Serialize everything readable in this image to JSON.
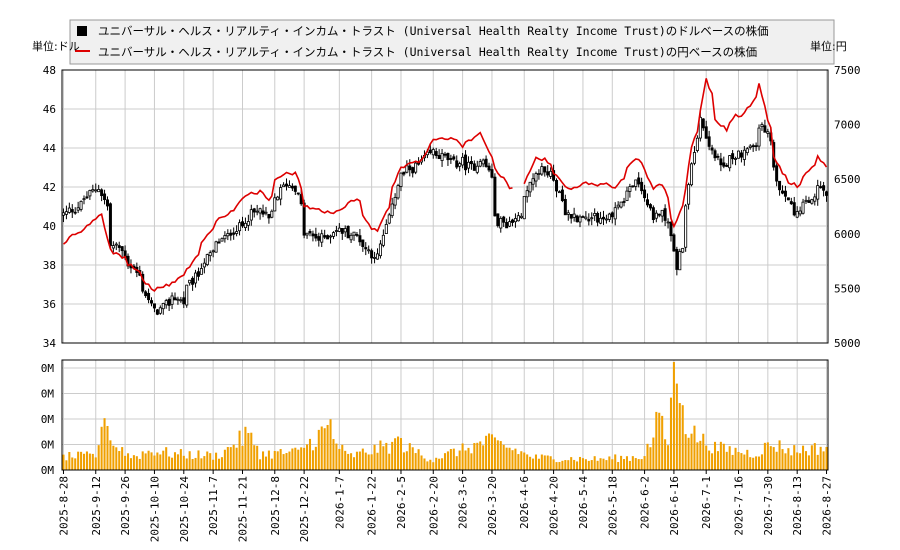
{
  "chart_data": [
    {
      "type": "candlestick",
      "panel": "price",
      "y_unit_left": "単位:ドル",
      "y_unit_right": "単位:円",
      "legend": [
        {
          "label": "ユニバーサル・ヘルス・リアルティ・インカム・トラスト (Universal Health Realty Income Trust)のドルベースの株価",
          "color": "#000000",
          "marker": "square"
        },
        {
          "label": "ユニバーサル・ヘルス・リアルティ・インカム・トラスト (Universal Health Realty Income Trust)の円ベースの株価",
          "color": "#dd0000",
          "marker": "line"
        }
      ],
      "ylim_left": [
        34,
        48
      ],
      "yticks_left": [
        34,
        36,
        38,
        40,
        42,
        44,
        46,
        48
      ],
      "ylim_right": [
        5000,
        7500
      ],
      "yticks_right": [
        5000,
        5500,
        6000,
        6500,
        7000,
        7500
      ],
      "grid": true,
      "usd_close_anchors": [
        [
          "2025-08-28",
          40.6
        ],
        [
          "2025-09-03",
          40.9
        ],
        [
          "2025-09-08",
          41.4
        ],
        [
          "2025-09-12",
          41.9
        ],
        [
          "2025-09-15",
          42.0
        ],
        [
          "2025-09-18",
          41.0
        ],
        [
          "2025-09-19",
          39.0
        ],
        [
          "2025-09-24",
          38.9
        ],
        [
          "2025-09-26",
          38.5
        ],
        [
          "2025-10-01",
          37.8
        ],
        [
          "2025-10-06",
          36.8
        ],
        [
          "2025-10-10",
          35.6
        ],
        [
          "2025-10-14",
          35.7
        ],
        [
          "2025-10-20",
          36.4
        ],
        [
          "2025-10-24",
          36.1
        ],
        [
          "2025-10-28",
          37.0
        ],
        [
          "2025-11-04",
          38.2
        ],
        [
          "2025-11-11",
          39.2
        ],
        [
          "2025-11-18",
          39.8
        ],
        [
          "2025-11-21",
          40.0
        ],
        [
          "2025-11-26",
          40.6
        ],
        [
          "2025-12-01",
          40.8
        ],
        [
          "2025-12-04",
          40.3
        ],
        [
          "2025-12-08",
          41.4
        ],
        [
          "2025-12-12",
          42.2
        ],
        [
          "2025-12-17",
          42.0
        ],
        [
          "2025-12-19",
          41.0
        ],
        [
          "2025-12-22",
          39.6
        ],
        [
          "2025-12-29",
          39.3
        ],
        [
          "2026-01-05",
          39.8
        ],
        [
          "2026-01-10",
          39.7
        ],
        [
          "2026-01-15",
          39.5
        ],
        [
          "2026-01-22",
          38.6
        ],
        [
          "2026-01-26",
          38.4
        ],
        [
          "2026-01-29",
          40.0
        ],
        [
          "2026-02-03",
          41.6
        ],
        [
          "2026-02-05",
          42.6
        ],
        [
          "2026-02-10",
          42.9
        ],
        [
          "2026-02-16",
          43.3
        ],
        [
          "2026-02-20",
          43.8
        ],
        [
          "2026-02-26",
          43.5
        ],
        [
          "2026-03-03",
          43.2
        ],
        [
          "2026-03-06",
          43.3
        ],
        [
          "2026-03-11",
          43.0
        ],
        [
          "2026-03-16",
          43.5
        ],
        [
          "2026-03-20",
          42.6
        ],
        [
          "2026-03-23",
          40.3
        ],
        [
          "2026-03-27",
          40.1
        ],
        [
          "2026-04-01",
          40.3
        ],
        [
          "2026-04-06",
          41.4
        ],
        [
          "2026-04-10",
          42.9
        ],
        [
          "2026-04-15",
          42.8
        ],
        [
          "2026-04-20",
          42.5
        ],
        [
          "2026-04-24",
          40.6
        ],
        [
          "2026-04-28",
          40.5
        ],
        [
          "2026-05-04",
          40.4
        ],
        [
          "2026-05-08",
          40.6
        ],
        [
          "2026-05-13",
          40.3
        ],
        [
          "2026-05-18",
          40.7
        ],
        [
          "2026-05-22",
          41.4
        ],
        [
          "2026-05-28",
          42.2
        ],
        [
          "2026-06-01",
          41.9
        ],
        [
          "2026-06-05",
          40.3
        ],
        [
          "2026-06-10",
          40.8
        ],
        [
          "2026-06-15",
          39.4
        ],
        [
          "2026-06-17",
          37.9
        ],
        [
          "2026-06-22",
          40.8
        ],
        [
          "2026-06-24",
          43.4
        ],
        [
          "2026-06-29",
          45.6
        ],
        [
          "2026-07-02",
          44.1
        ],
        [
          "2026-07-07",
          43.3
        ],
        [
          "2026-07-10",
          42.9
        ],
        [
          "2026-07-15",
          43.7
        ],
        [
          "2026-07-20",
          43.8
        ],
        [
          "2026-07-24",
          44.2
        ],
        [
          "2026-07-27",
          45.2
        ],
        [
          "2026-07-30",
          44.6
        ],
        [
          "2026-08-03",
          42.8
        ],
        [
          "2026-08-06",
          41.6
        ],
        [
          "2026-08-10",
          41.2
        ],
        [
          "2026-08-13",
          40.6
        ],
        [
          "2026-08-18",
          41.1
        ],
        [
          "2026-08-24",
          41.9
        ],
        [
          "2026-08-27",
          41.6
        ]
      ],
      "jpy_close_anchors": [
        [
          "2025-08-28",
          5900
        ],
        [
          "2025-09-03",
          6000
        ],
        [
          "2025-09-08",
          6050
        ],
        [
          "2025-09-12",
          6150
        ],
        [
          "2025-09-16",
          6180
        ],
        [
          "2025-09-19",
          5850
        ],
        [
          "2025-09-26",
          5780
        ],
        [
          "2025-10-03",
          5650
        ],
        [
          "2025-10-10",
          5480
        ],
        [
          "2025-10-20",
          5550
        ],
        [
          "2025-10-28",
          5700
        ],
        [
          "2025-11-04",
          5950
        ],
        [
          "2025-11-11",
          6150
        ],
        [
          "2025-11-18",
          6220
        ],
        [
          "2025-11-21",
          6330
        ],
        [
          "2025-12-01",
          6400
        ],
        [
          "2025-12-04",
          6310
        ],
        [
          "2025-12-08",
          6500
        ],
        [
          "2025-12-12",
          6570
        ],
        [
          "2025-12-17",
          6550
        ],
        [
          "2025-12-22",
          6250
        ],
        [
          "2026-01-05",
          6180
        ],
        [
          "2026-01-10",
          6260
        ],
        [
          "2026-01-15",
          6330
        ],
        [
          "2026-01-22",
          6050
        ],
        [
          "2026-01-26",
          6020
        ],
        [
          "2026-02-03",
          6480
        ],
        [
          "2026-02-05",
          6600
        ],
        [
          "2026-02-16",
          6680
        ],
        [
          "2026-02-20",
          6860
        ],
        [
          "2026-03-03",
          6880
        ],
        [
          "2026-03-06",
          6800
        ],
        [
          "2026-03-11",
          6870
        ],
        [
          "2026-03-16",
          6930
        ],
        [
          "2026-03-20",
          6700
        ],
        [
          "2026-03-27",
          6470
        ],
        [
          "2026-04-01",
          6400
        ],
        [
          "2026-04-06",
          6470
        ],
        [
          "2026-04-10",
          6700
        ],
        [
          "2026-04-15",
          6680
        ],
        [
          "2026-04-20",
          6560
        ],
        [
          "2026-04-24",
          6430
        ],
        [
          "2026-04-28",
          6420
        ],
        [
          "2026-05-04",
          6470
        ],
        [
          "2026-05-08",
          6440
        ],
        [
          "2026-05-13",
          6460
        ],
        [
          "2026-05-18",
          6410
        ],
        [
          "2026-05-22",
          6500
        ],
        [
          "2026-05-28",
          6700
        ],
        [
          "2026-06-01",
          6650
        ],
        [
          "2026-06-05",
          6400
        ],
        [
          "2026-06-10",
          6450
        ],
        [
          "2026-06-16",
          6080
        ],
        [
          "2026-06-22",
          6430
        ],
        [
          "2026-06-24",
          6800
        ],
        [
          "2026-06-29",
          7120
        ],
        [
          "2026-07-01",
          7420
        ],
        [
          "2026-07-06",
          7050
        ],
        [
          "2026-07-10",
          6950
        ],
        [
          "2026-07-15",
          7080
        ],
        [
          "2026-07-20",
          7100
        ],
        [
          "2026-07-27",
          7390
        ],
        [
          "2026-07-30",
          7050
        ],
        [
          "2026-08-03",
          6700
        ],
        [
          "2026-08-06",
          6560
        ],
        [
          "2026-08-10",
          6480
        ],
        [
          "2026-08-13",
          6440
        ],
        [
          "2026-08-18",
          6560
        ],
        [
          "2026-08-24",
          6720
        ],
        [
          "2026-08-27",
          6600
        ]
      ],
      "jpy_series_gap": [
        "2026-04-01",
        "2026-04-05"
      ]
    },
    {
      "type": "bar",
      "panel": "volume",
      "color": "#f0a000",
      "yticks_label": [
        "0M",
        "0M",
        "0M",
        "0M",
        "0M"
      ],
      "volume_relative_anchors": [
        [
          "2025-08-28",
          0.15
        ],
        [
          "2025-09-12",
          0.16
        ],
        [
          "2025-09-18",
          0.48
        ],
        [
          "2025-09-22",
          0.28
        ],
        [
          "2025-09-30",
          0.15
        ],
        [
          "2025-10-10",
          0.22
        ],
        [
          "2025-10-20",
          0.18
        ],
        [
          "2025-11-10",
          0.16
        ],
        [
          "2025-11-24",
          0.4
        ],
        [
          "2025-12-01",
          0.18
        ],
        [
          "2025-12-18",
          0.2
        ],
        [
          "2026-01-02",
          0.47
        ],
        [
          "2026-01-10",
          0.14
        ],
        [
          "2026-02-04",
          0.3
        ],
        [
          "2026-02-20",
          0.12
        ],
        [
          "2026-03-20",
          0.33
        ],
        [
          "2026-04-10",
          0.14
        ],
        [
          "2026-05-10",
          0.12
        ],
        [
          "2026-06-01",
          0.15
        ],
        [
          "2026-06-09",
          0.55
        ],
        [
          "2026-06-12",
          0.3
        ],
        [
          "2026-06-16",
          1.0
        ],
        [
          "2026-06-20",
          0.6
        ],
        [
          "2026-06-25",
          0.4
        ],
        [
          "2026-07-05",
          0.25
        ],
        [
          "2026-07-25",
          0.18
        ],
        [
          "2026-08-01",
          0.3
        ],
        [
          "2026-08-10",
          0.22
        ],
        [
          "2026-08-27",
          0.25
        ]
      ],
      "volume_spikes": [
        [
          "2025-09-17",
          0.48
        ],
        [
          "2025-11-24",
          0.4
        ],
        [
          "2026-01-02",
          0.47
        ],
        [
          "2026-02-04",
          0.31
        ],
        [
          "2026-03-20",
          0.33
        ],
        [
          "2026-06-09",
          0.53
        ],
        [
          "2026-06-16",
          1.0
        ],
        [
          "2026-06-17",
          0.8
        ],
        [
          "2026-06-18",
          0.62
        ],
        [
          "2026-06-19",
          0.6
        ],
        [
          "2026-06-15",
          0.67
        ]
      ],
      "x_ticks": [
        "2025-8-28",
        "2025-9-12",
        "2025-9-26",
        "2025-10-10",
        "2025-10-24",
        "2025-11-7",
        "2025-11-21",
        "2025-12-8",
        "2025-12-22",
        "2026-1-7",
        "2026-1-22",
        "2026-2-5",
        "2026-2-20",
        "2026-3-6",
        "2026-3-20",
        "2026-4-6",
        "2026-4-20",
        "2026-5-4",
        "2026-5-18",
        "2026-6-2",
        "2026-6-16",
        "2026-7-1",
        "2026-7-16",
        "2026-7-30",
        "2026-8-13",
        "2026-8-27"
      ]
    }
  ]
}
